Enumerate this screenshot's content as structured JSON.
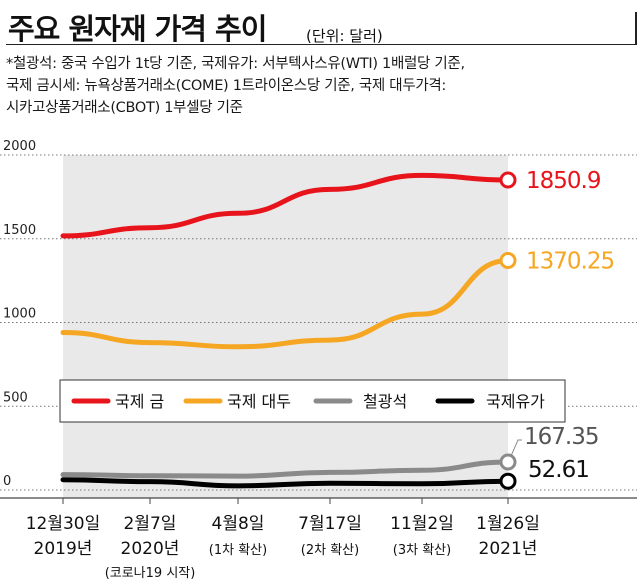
{
  "header": {
    "title": "주요 원자재 가격 추이",
    "unit": "(단위: 달러)"
  },
  "notes": [
    "*철광석: 중국 수입가 1t당 기준, 국제유가: 서부텍사스유(WTI) 1배럴당 기준,",
    " 국제 금시세: 뉴욕상품거래소(COME) 1트라이온스당 기준, 국제 대두가격:",
    "시카고상품거래소(CBOT) 1부셀당 기준"
  ],
  "chart_data": {
    "type": "line",
    "title": "주요 원자재 가격 추이",
    "unit": "(단위: 달러)",
    "ylim": [
      0,
      2000
    ],
    "yticks": [
      "0",
      "500",
      "1000",
      "1500",
      "2000"
    ],
    "categories": [
      {
        "line1": "12월30일",
        "line2": "2019년",
        "line3": ""
      },
      {
        "line1": "2월7일",
        "line2": "2020년",
        "line3": "(코로나19 시작)"
      },
      {
        "line1": "4월8일",
        "line2": "(1차 확산)",
        "line3": ""
      },
      {
        "line1": "7월17일",
        "line2": "(2차 확산)",
        "line3": ""
      },
      {
        "line1": "11월2일",
        "line2": "(3차 확산)",
        "line3": ""
      },
      {
        "line1": "1월26일",
        "line2": "2021년",
        "line3": ""
      }
    ],
    "series": [
      {
        "name": "국제 금",
        "color": "#e8141c",
        "values": [
          1517,
          1566,
          1652,
          1795,
          1878,
          1850.9
        ],
        "end_label": "1850.9"
      },
      {
        "name": "국제 대두",
        "color": "#f5a623",
        "values": [
          940,
          880,
          855,
          895,
          1050,
          1370.25
        ],
        "end_label": "1370.25"
      },
      {
        "name": "철광석",
        "color": "#8a8a8a",
        "values": [
          92,
          85,
          83,
          105,
          118,
          167.35
        ],
        "end_label": "167.35"
      },
      {
        "name": "국제유가",
        "color": "#000000",
        "values": [
          61,
          50,
          25,
          40,
          37,
          52.61
        ],
        "end_label": "52.61"
      }
    ]
  }
}
